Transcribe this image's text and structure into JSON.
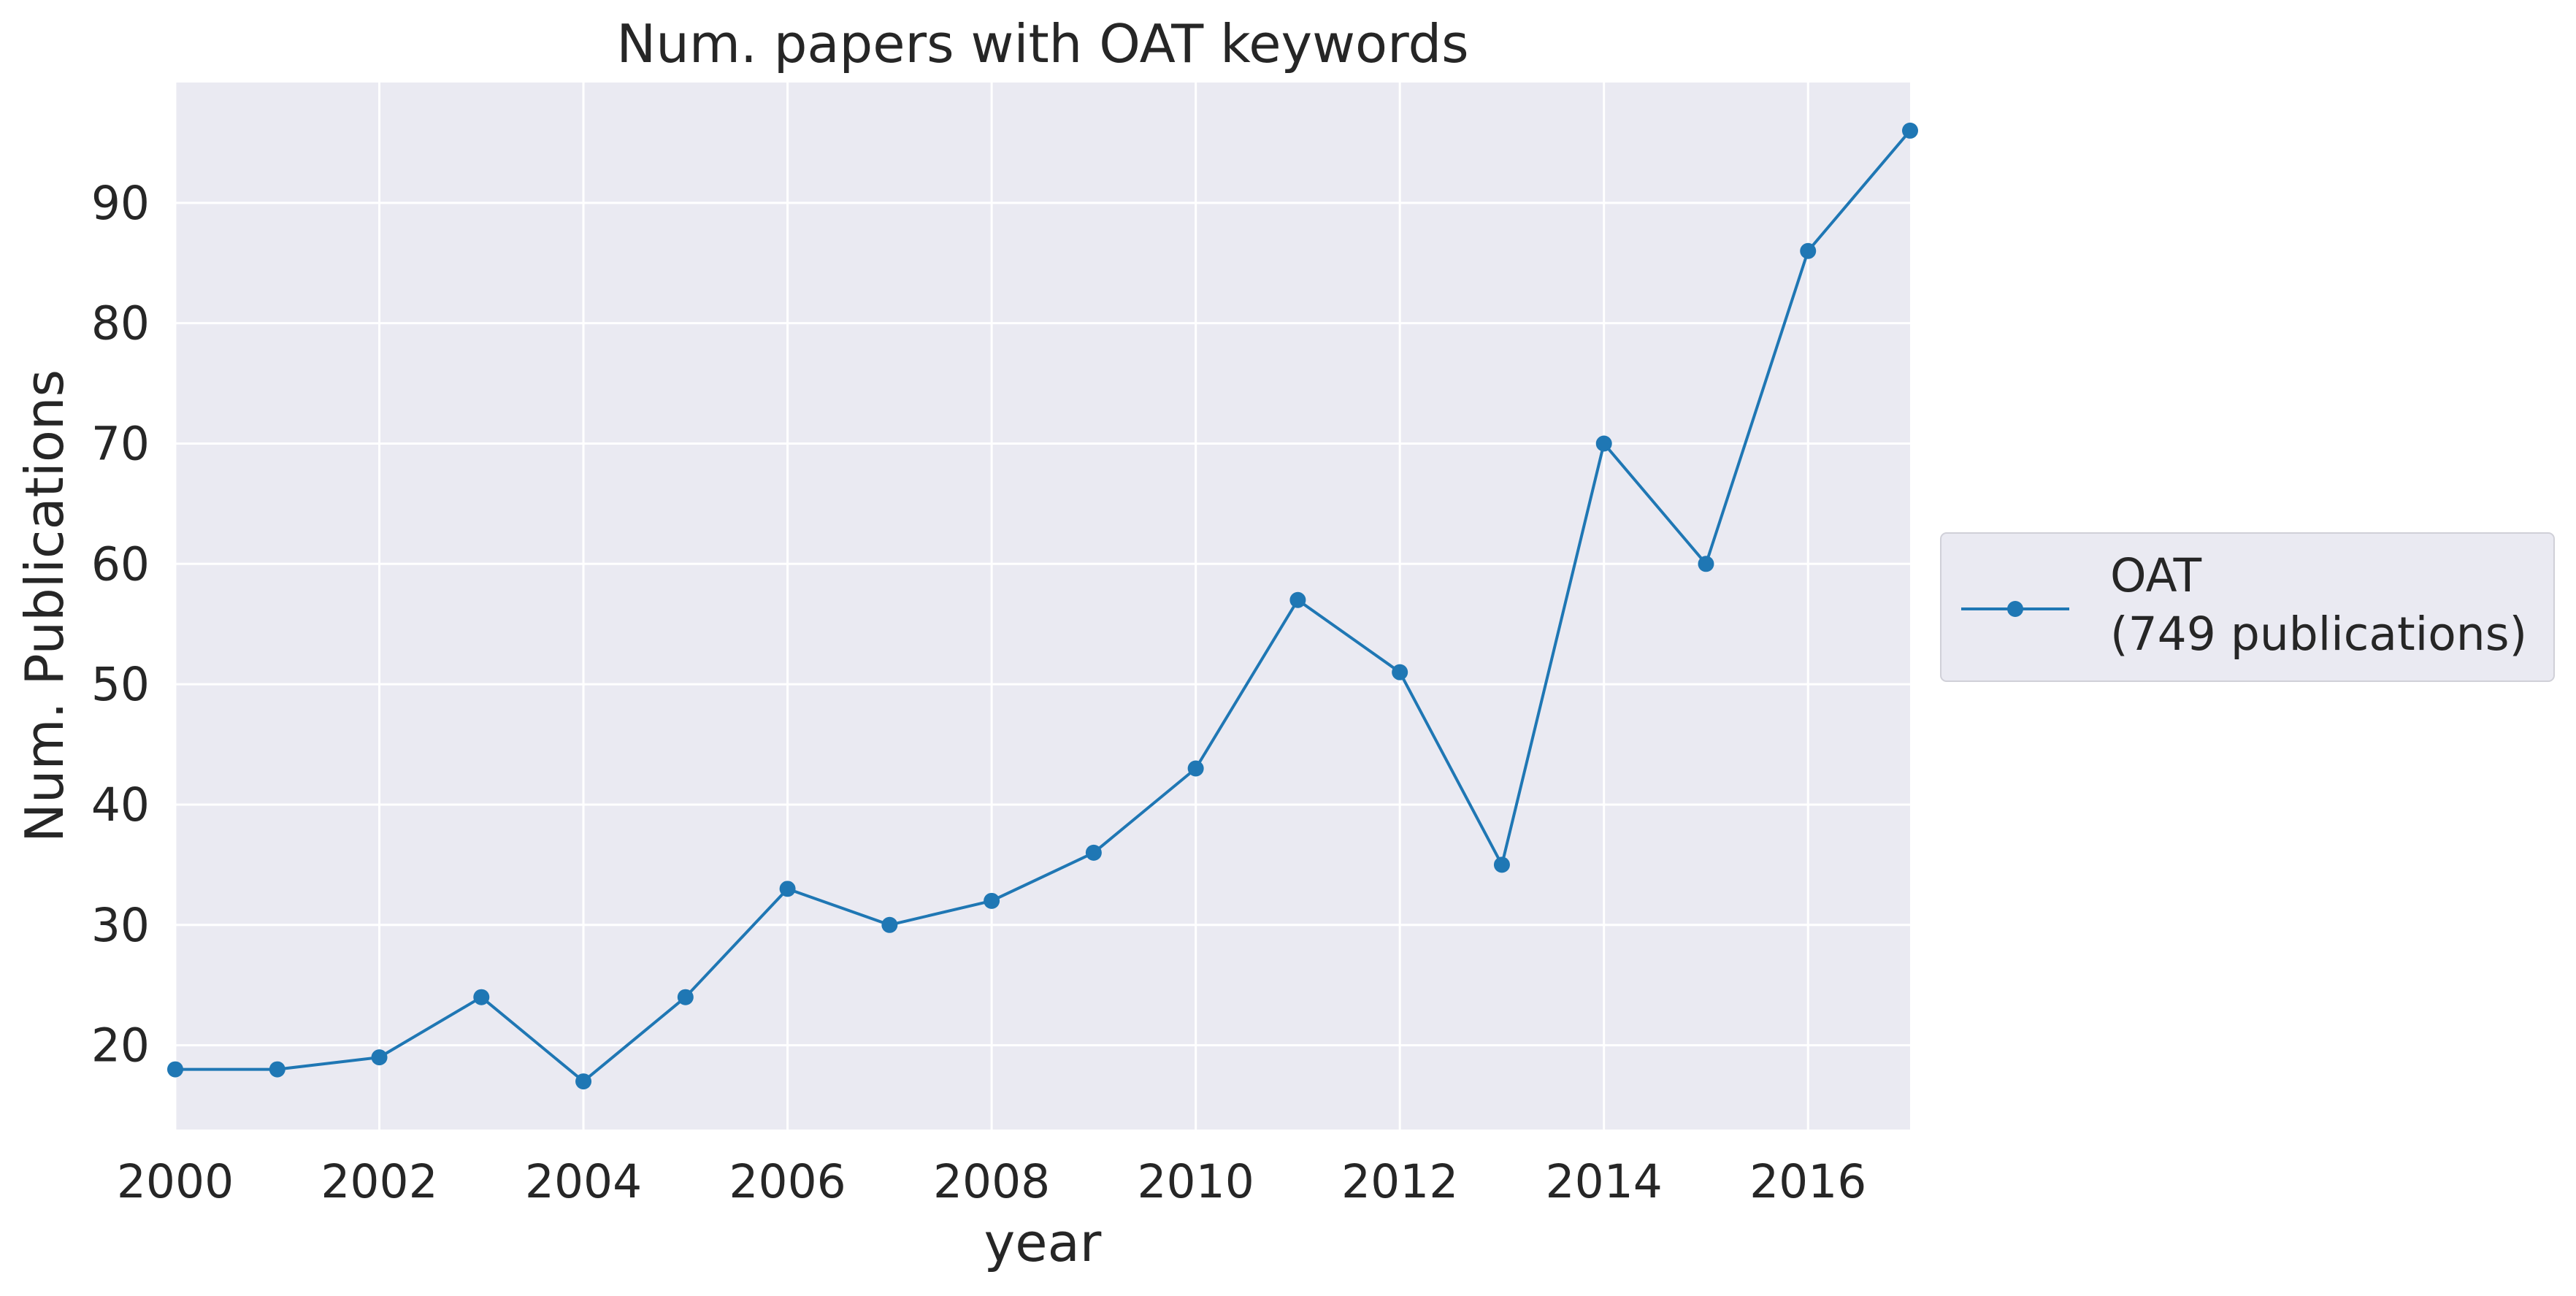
{
  "chart_data": {
    "type": "line",
    "title": "Num. papers with OAT keywords",
    "xlabel": "year",
    "ylabel": "Num. Publications",
    "xlim": [
      2000,
      2017
    ],
    "ylim": [
      13,
      100
    ],
    "xticks": [
      2000,
      2002,
      2004,
      2006,
      2008,
      2010,
      2012,
      2014,
      2016
    ],
    "yticks": [
      20,
      30,
      40,
      50,
      60,
      70,
      80,
      90
    ],
    "grid": true,
    "legend_position": "right-center",
    "colors": {
      "plot_background": "#eaeaf2",
      "grid": "#ffffff",
      "series": "#1f77b4",
      "text": "#262626"
    },
    "x": [
      2000,
      2001,
      2002,
      2003,
      2004,
      2005,
      2006,
      2007,
      2008,
      2009,
      2010,
      2011,
      2012,
      2013,
      2014,
      2015,
      2016,
      2017
    ],
    "series": [
      {
        "name": "OAT",
        "legend_line2": "(749 publications)",
        "values": [
          18,
          18,
          19,
          24,
          17,
          24,
          33,
          30,
          32,
          36,
          43,
          57,
          51,
          35,
          70,
          60,
          86,
          96
        ]
      }
    ]
  }
}
